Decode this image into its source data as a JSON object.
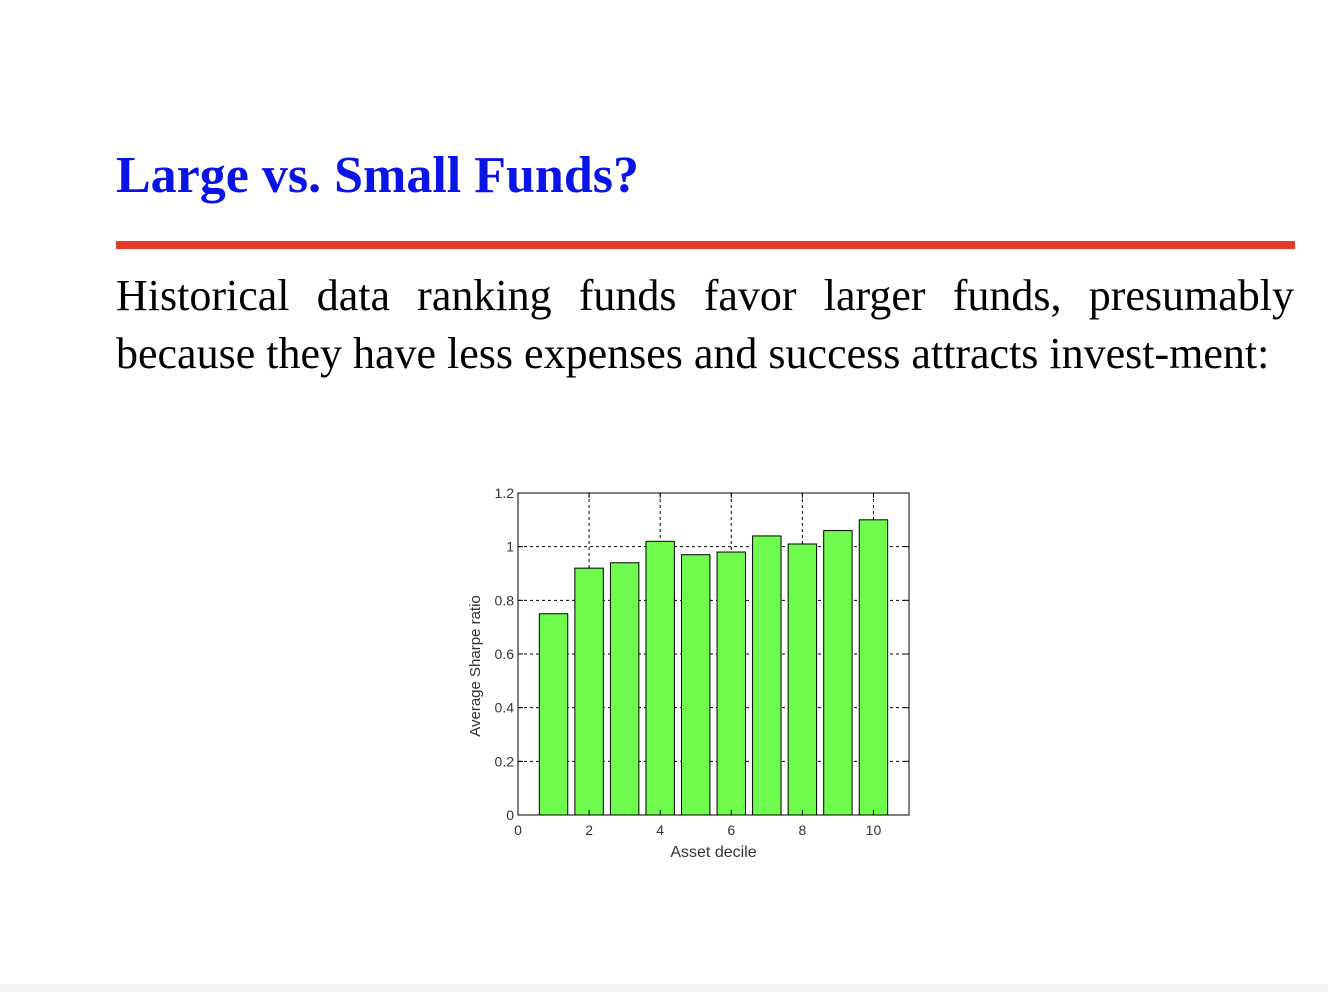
{
  "slide": {
    "title": "Large vs. Small Funds?",
    "body": "Historical data ranking funds favor larger funds, presumably because they have less expenses and success attracts invest-ment:"
  },
  "colors": {
    "title": "#0b14e6",
    "rule": "#e43a26",
    "bar_fill": "#6ffb4e",
    "bar_stroke": "#000000"
  },
  "chart_data": {
    "type": "bar",
    "x": [
      1,
      2,
      3,
      4,
      5,
      6,
      7,
      8,
      9,
      10
    ],
    "values": [
      0.75,
      0.92,
      0.94,
      1.02,
      0.97,
      0.98,
      1.04,
      1.01,
      1.06,
      1.1
    ],
    "xlabel": "Asset decile",
    "ylabel": "Average Sharpe ratio",
    "xlim": [
      0,
      11
    ],
    "ylim": [
      0,
      1.2
    ],
    "xticks": [
      "0",
      "2",
      "4",
      "6",
      "8",
      "10"
    ],
    "yticks": [
      "0",
      "0.2",
      "0.4",
      "0.6",
      "0.8",
      "1",
      "1.2"
    ],
    "grid": true
  }
}
